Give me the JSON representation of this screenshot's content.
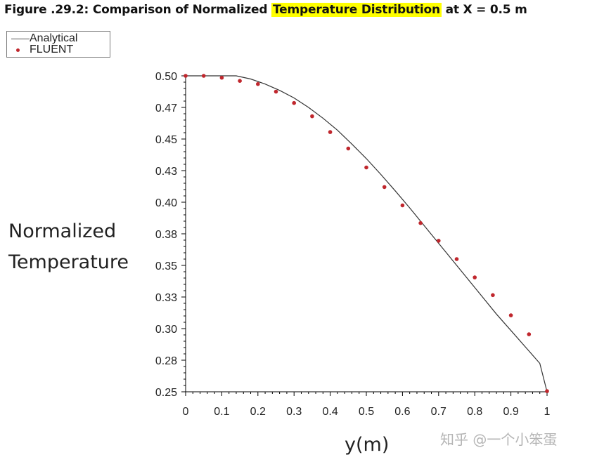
{
  "figure": {
    "title_prefix": "Figure .29.2: Comparison of Normalized ",
    "title_highlight": "Temperature Distribution",
    "title_suffix": " at X = 0.5 m",
    "highlight_color": "#ffff00"
  },
  "watermark": "知乎 @一个小笨蛋",
  "colors": {
    "line": "#333333",
    "points": "#c0272d",
    "axis": "#000000"
  },
  "chart_data": {
    "type": "line",
    "title": "Figure .29.2: Comparison of Normalized Temperature Distribution at X = 0.5 m",
    "xlabel": "y(m)",
    "ylabel_lines": [
      "Normalized",
      "Temperature"
    ],
    "xlim": [
      0,
      1
    ],
    "ylim": [
      0.25,
      0.5
    ],
    "grid": false,
    "legend_position": "top-left",
    "x_ticks": [
      0,
      0.1,
      0.2,
      0.3,
      0.4,
      0.5,
      0.6,
      0.7,
      0.8,
      0.9,
      1
    ],
    "x_tick_labels": [
      "0",
      "0.1",
      "0.2",
      "0.3",
      "0.4",
      "0.5",
      "0.6",
      "0.7",
      "0.8",
      "0.9",
      "1"
    ],
    "y_ticks": [
      0.25,
      0.275,
      0.3,
      0.325,
      0.35,
      0.375,
      0.4,
      0.425,
      0.45,
      0.475,
      0.5
    ],
    "y_tick_labels": [
      "0.25",
      "0.28",
      "0.30",
      "0.33",
      "0.35",
      "0.38",
      "0.40",
      "0.43",
      "0.45",
      "0.47",
      "0.50"
    ],
    "series": [
      {
        "name": "Analytical",
        "style": "line",
        "x": [
          0,
          0.05,
          0.1,
          0.14,
          0.18,
          0.22,
          0.26,
          0.3,
          0.34,
          0.38,
          0.42,
          0.46,
          0.5,
          0.54,
          0.58,
          0.62,
          0.66,
          0.7,
          0.74,
          0.78,
          0.82,
          0.86,
          0.9,
          0.94,
          0.98,
          1
        ],
        "y": [
          0.5,
          0.5,
          0.5,
          0.5,
          0.4975,
          0.4935,
          0.4885,
          0.4825,
          0.475,
          0.4665,
          0.457,
          0.446,
          0.4345,
          0.422,
          0.409,
          0.3955,
          0.3815,
          0.3675,
          0.3535,
          0.3395,
          0.3255,
          0.3115,
          0.2985,
          0.2855,
          0.2725,
          0.25
        ]
      },
      {
        "name": "FLUENT",
        "style": "points",
        "x": [
          0,
          0.05,
          0.1,
          0.15,
          0.2,
          0.25,
          0.3,
          0.35,
          0.4,
          0.45,
          0.5,
          0.55,
          0.6,
          0.65,
          0.7,
          0.75,
          0.8,
          0.85,
          0.9,
          0.95,
          1
        ],
        "y": [
          0.5,
          0.5,
          0.4985,
          0.496,
          0.4935,
          0.4875,
          0.4785,
          0.468,
          0.4555,
          0.4425,
          0.4275,
          0.412,
          0.3975,
          0.3835,
          0.3695,
          0.355,
          0.3405,
          0.3265,
          0.3105,
          0.2955,
          0.2505
        ]
      }
    ]
  }
}
